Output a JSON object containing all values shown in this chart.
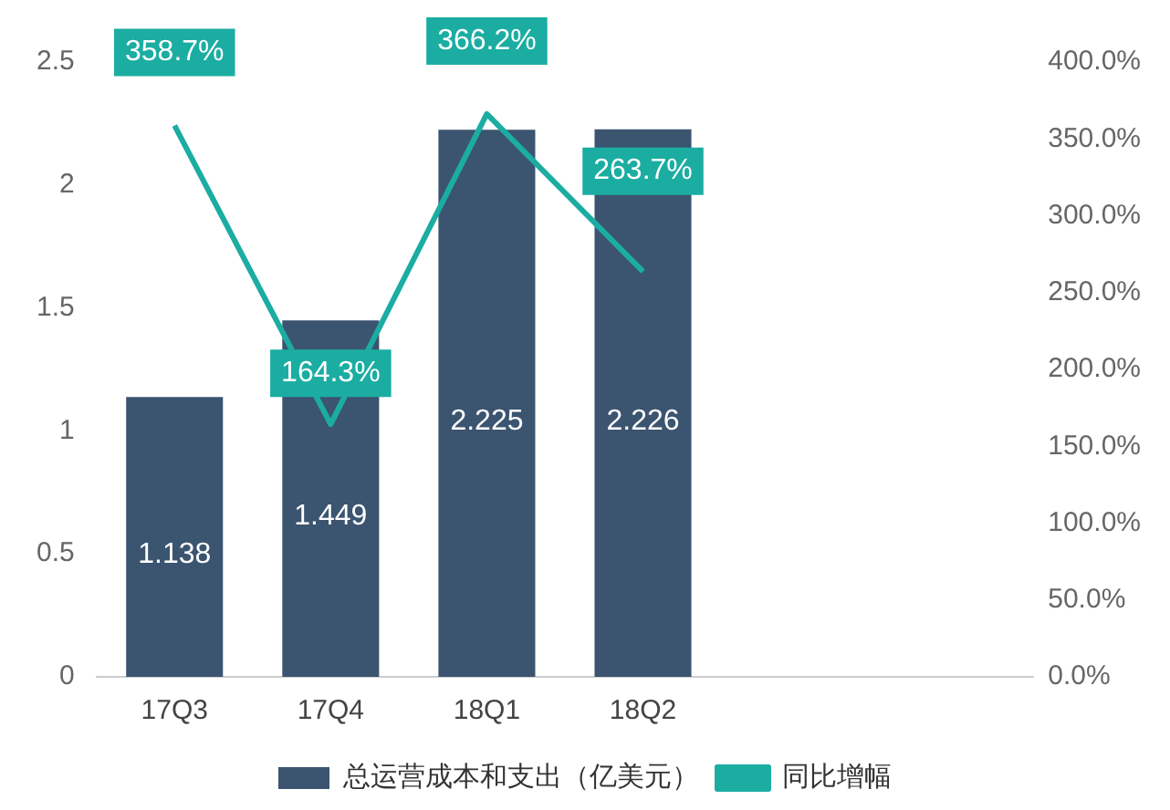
{
  "chart_data": {
    "type": "bar",
    "categories": [
      "17Q3",
      "17Q4",
      "18Q1",
      "18Q2",
      null,
      null
    ],
    "series": [
      {
        "name": "总运营成本和支出（亿美元）",
        "color": "#3b5470",
        "values": [
          1.138,
          1.449,
          2.225,
          2.226,
          null,
          null
        ],
        "value_labels": [
          "1.138",
          "1.449",
          "2.225",
          "2.226",
          null,
          null
        ]
      },
      {
        "name": "同比增幅",
        "type": "line",
        "axis": "y2",
        "color": "#1bada2",
        "values": [
          358.7,
          164.3,
          366.2,
          263.7,
          null,
          null
        ],
        "value_labels": [
          "358.7%",
          "164.3%",
          "366.2%",
          "263.7%",
          null,
          null
        ]
      }
    ],
    "ylim": [
      0,
      2.5
    ],
    "yticks": [
      0,
      0.5,
      1,
      1.5,
      2,
      2.5
    ],
    "y2lim": [
      0,
      400
    ],
    "y2ticks": [
      {
        "value": 0,
        "label": "0.0%"
      },
      {
        "value": 50,
        "label": "50.0%"
      },
      {
        "value": 100,
        "label": "100.0%"
      },
      {
        "value": 150,
        "label": "150.0%"
      },
      {
        "value": 200,
        "label": "200.0%"
      },
      {
        "value": 250,
        "label": "250.0%"
      },
      {
        "value": 300,
        "label": "300.0%"
      },
      {
        "value": 350,
        "label": "350.0%"
      },
      {
        "value": 400,
        "label": "400.0%"
      }
    ],
    "grid": false,
    "legend": "bottom",
    "marker": "none",
    "line_style": "solid"
  }
}
